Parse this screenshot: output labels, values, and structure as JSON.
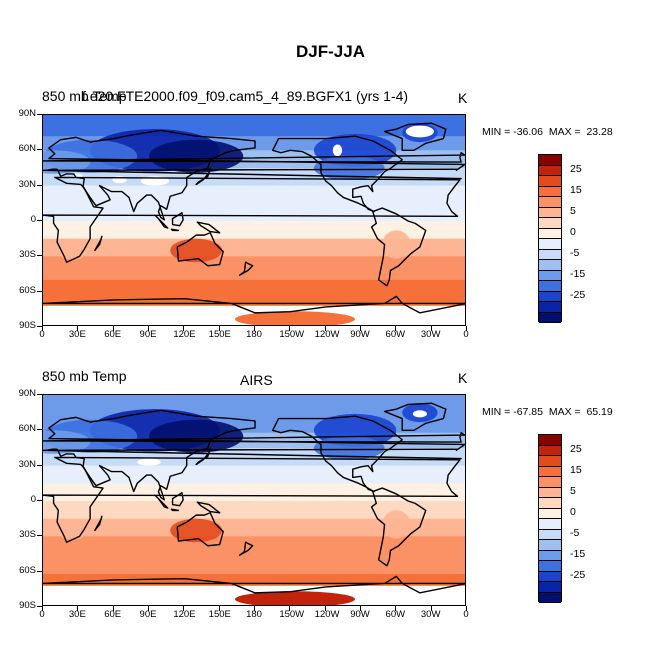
{
  "page_title": "DJF-JJA",
  "panels": [
    {
      "id": "model",
      "left_label": "850 mb Temp",
      "center_label": "f.e20.FTE2000.f09_f09.cam5_4_89.BGFX1 (yrs 1-4)",
      "units": "K",
      "min_max": "MIN = -36.06  MAX =  23.28",
      "min": -36.06,
      "max": 23.28
    },
    {
      "id": "obs",
      "left_label": "850 mb Temp",
      "center_label": "AIRS",
      "units": "K",
      "min_max": "MIN = -67.85  MAX =  65.19",
      "min": -67.85,
      "max": 65.19
    }
  ],
  "lat_ticks": [
    "90N",
    "60N",
    "30N",
    "0",
    "30S",
    "60S",
    "90S"
  ],
  "lon_ticks": [
    "0",
    "30E",
    "60E",
    "90E",
    "120E",
    "150E",
    "180",
    "150W",
    "120W",
    "90W",
    "60W",
    "30W",
    "0"
  ],
  "colorbar": {
    "labels": [
      "25",
      "15",
      "5",
      "0",
      "-5",
      "-15",
      "-25"
    ],
    "colors": [
      "#8b0000",
      "#c1240a",
      "#e34a1c",
      "#f6703a",
      "#fb9266",
      "#fdb594",
      "#fdd9c2",
      "#fdf1e4",
      "#e6effb",
      "#c6dbf7",
      "#9dc0f0",
      "#6d9bea",
      "#3d70e0",
      "#1a44cf",
      "#0a24a8",
      "#020f6e"
    ]
  }
}
